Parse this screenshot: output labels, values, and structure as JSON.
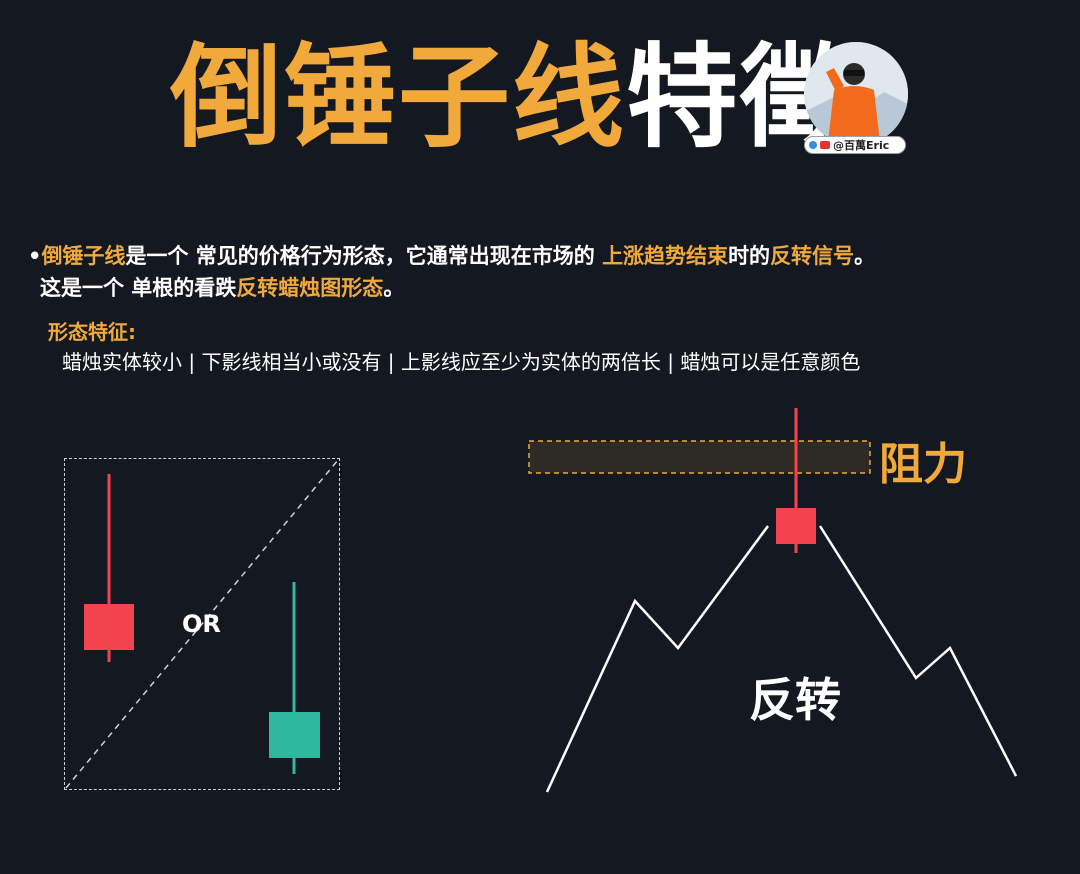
{
  "title": {
    "highlight": "倒锤子线",
    "rest": "特徵"
  },
  "author": {
    "handle": "@百萬Eric",
    "icons": [
      "twitter-icon",
      "youtube-icon"
    ]
  },
  "description": {
    "bullet": "•",
    "p1": "倒锤子线",
    "p2": "是一个 常见的价格行为形态，它通常出现在市场的 ",
    "p3": "上涨趋势结束",
    "p4": "时的",
    "p5": "反转信号",
    "p6": "。",
    "p7": "这是一个 单根的看跌",
    "p8": "反转蜡烛图形态",
    "p9": "。"
  },
  "features": {
    "title": "形态特征:",
    "list": "蜡烛实体较小 | 下影线相当小或没有 | 上影线应至少为实体的两倍长 | 蜡烛可以是任意颜色"
  },
  "diagram": {
    "or_label": "OR",
    "resistance_label": "阻力",
    "reversal_label": "反转"
  },
  "colors": {
    "background": "#141821",
    "accent": "#f2a93b",
    "bearish": "#f2434f",
    "bullish": "#2fb89e",
    "text": "#ffffff"
  }
}
